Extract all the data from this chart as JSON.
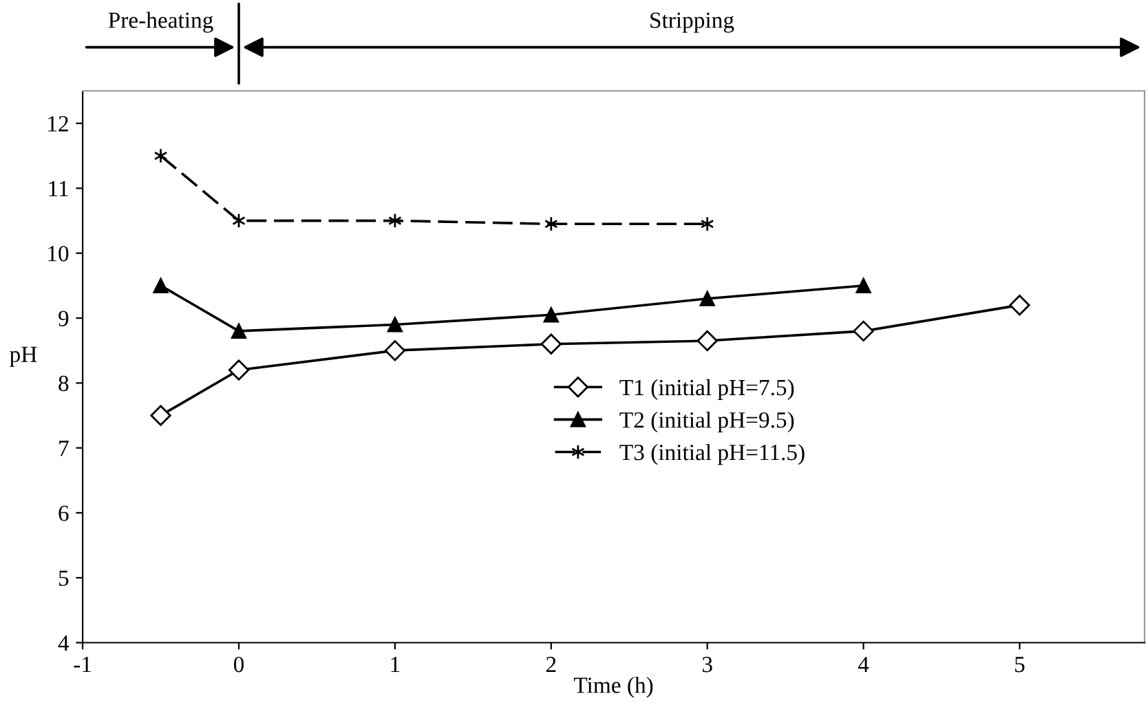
{
  "chart_data": {
    "type": "line",
    "xlabel": "Time (h)",
    "ylabel": "pH",
    "x": [
      -0.5,
      0,
      1,
      2,
      3,
      4,
      5
    ],
    "series": [
      {
        "name": "T1 (initial pH=7.5)",
        "color": "#000000",
        "marker": "diamond",
        "values": [
          7.5,
          8.2,
          8.5,
          8.6,
          8.65,
          8.8,
          9.2
        ]
      },
      {
        "name": "T2 (initial pH=9.5)",
        "color": "#000000",
        "marker": "triangle",
        "values": [
          9.5,
          8.8,
          8.9,
          9.05,
          9.3,
          9.5,
          null
        ]
      },
      {
        "name": "T3 (initial pH=11.5)",
        "color": "#000000",
        "marker": "cross",
        "line_style": "dashed",
        "values": [
          11.5,
          10.5,
          10.5,
          10.45,
          10.45,
          null,
          null
        ]
      }
    ],
    "xlim": [
      -1,
      5.8
    ],
    "xticks": [
      -1,
      0,
      1,
      2,
      3,
      4,
      5
    ],
    "ylim": [
      4,
      12.5
    ],
    "yticks": [
      4,
      5,
      6,
      7,
      8,
      9,
      10,
      11,
      12
    ],
    "grid": false,
    "legend": "right",
    "annotations": [
      "Pre-heating",
      "Stripping"
    ]
  }
}
